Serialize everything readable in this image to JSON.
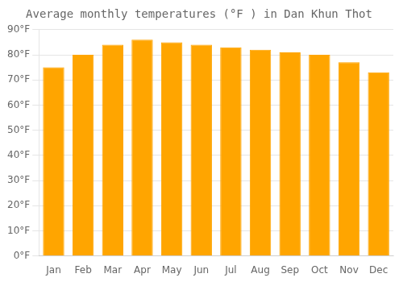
{
  "chart_data": {
    "type": "bar",
    "title": "Average monthly temperatures (°F ) in Dan Khun Thot",
    "categories": [
      "Jan",
      "Feb",
      "Mar",
      "Apr",
      "May",
      "Jun",
      "Jul",
      "Aug",
      "Sep",
      "Oct",
      "Nov",
      "Dec"
    ],
    "values": [
      75,
      80,
      84,
      86,
      85,
      84,
      83,
      82,
      81,
      80,
      77,
      73
    ],
    "color": "#FFA500",
    "ylim": [
      0,
      90
    ],
    "yticks": [
      {
        "value": 0,
        "label": "0°F"
      },
      {
        "value": 10,
        "label": "10°F"
      },
      {
        "value": 20,
        "label": "20°F"
      },
      {
        "value": 30,
        "label": "30°F"
      },
      {
        "value": 40,
        "label": "40°F"
      },
      {
        "value": 50,
        "label": "50°F"
      },
      {
        "value": 60,
        "label": "60°F"
      },
      {
        "value": 70,
        "label": "70°F"
      },
      {
        "value": 80,
        "label": "80°F"
      },
      {
        "value": 90,
        "label": "90°F"
      }
    ],
    "grid": true
  }
}
